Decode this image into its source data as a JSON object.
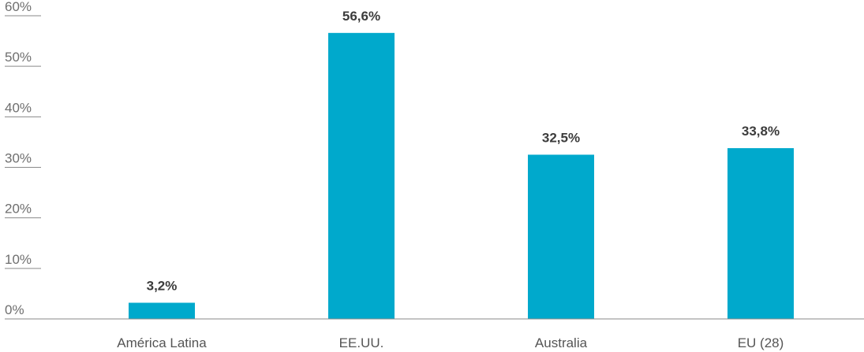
{
  "colors": {
    "bar": "#00a9cc",
    "axis": "#8a8a8a",
    "tick_text": "#6e6e6e",
    "category_text": "#555555",
    "value_text": "#3c3c3c"
  },
  "chart_data": {
    "type": "bar",
    "categories": [
      "América Latina",
      "EE.UU.",
      "Australia",
      "EU (28)"
    ],
    "values": [
      3.2,
      56.6,
      32.5,
      33.8
    ],
    "value_labels": [
      "3,2%",
      "56,6%",
      "32,5%",
      "33,8%"
    ],
    "yticks": [
      0,
      10,
      20,
      30,
      40,
      50,
      60
    ],
    "ytick_labels": [
      "0%",
      "10%",
      "20%",
      "30%",
      "40%",
      "50%",
      "60%"
    ],
    "ylim": [
      0,
      60
    ],
    "grid": false,
    "legend": "none"
  }
}
